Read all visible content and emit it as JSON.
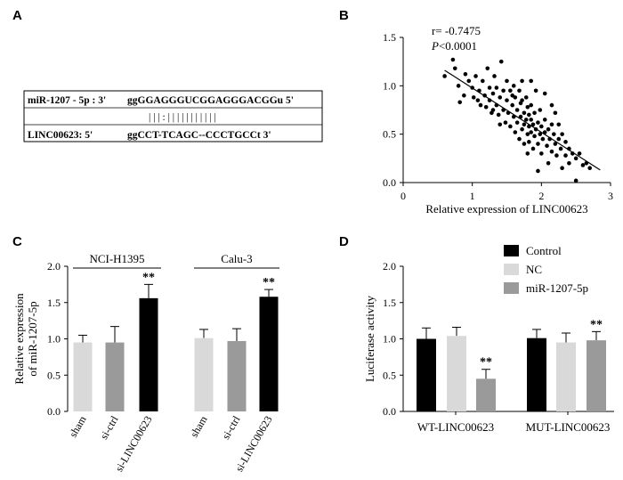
{
  "panels": {
    "A": {
      "letter": "A",
      "row1_label": "miR-1207 - 5p :  3'",
      "row1_seq": "ggGGAGGGUCGGAGGGACGGu  5'",
      "pairing": "| | |   :  | | | |     | | | | | | |",
      "row2_label": "LINC00623:  5'",
      "row2_seq": "ggCCT-TCAGC--CCCTGCCt  3'"
    },
    "B": {
      "letter": "B",
      "stat_r": "r= -0.7475",
      "stat_p_italic": "P",
      "stat_p_rest": "<0.0001"
    },
    "C": {
      "letter": "C"
    },
    "D": {
      "letter": "D"
    }
  },
  "chart_data": [
    {
      "id": "B",
      "type": "scatter",
      "xlabel": "Relative expression of LINC00623",
      "ylabel": "",
      "xlim": [
        0,
        3
      ],
      "ylim": [
        0,
        1.5
      ],
      "xticks": [
        "0",
        "1",
        "2",
        "3"
      ],
      "yticks": [
        "0.0",
        "0.5",
        "1.0",
        "1.5"
      ],
      "regression": {
        "x": [
          0.6,
          2.85
        ],
        "y": [
          1.16,
          0.13
        ]
      },
      "points": [
        [
          0.6,
          1.1
        ],
        [
          0.72,
          1.27
        ],
        [
          0.75,
          1.18
        ],
        [
          0.8,
          1.0
        ],
        [
          0.82,
          0.83
        ],
        [
          0.88,
          0.9
        ],
        [
          0.95,
          1.05
        ],
        [
          1.0,
          0.98
        ],
        [
          1.02,
          0.88
        ],
        [
          1.05,
          1.1
        ],
        [
          1.08,
          0.85
        ],
        [
          1.1,
          0.95
        ],
        [
          1.12,
          0.8
        ],
        [
          1.15,
          1.05
        ],
        [
          1.18,
          0.9
        ],
        [
          1.2,
          0.78
        ],
        [
          1.22,
          1.18
        ],
        [
          1.25,
          0.85
        ],
        [
          1.25,
          0.98
        ],
        [
          1.28,
          0.72
        ],
        [
          1.3,
          0.92
        ],
        [
          1.32,
          1.1
        ],
        [
          1.35,
          0.8
        ],
        [
          1.35,
          0.98
        ],
        [
          1.38,
          0.7
        ],
        [
          1.4,
          0.88
        ],
        [
          1.42,
          1.25
        ],
        [
          1.45,
          0.75
        ],
        [
          1.45,
          0.95
        ],
        [
          1.48,
          0.62
        ],
        [
          1.5,
          0.85
        ],
        [
          1.5,
          1.05
        ],
        [
          1.52,
          0.72
        ],
        [
          1.55,
          0.95
        ],
        [
          1.55,
          0.58
        ],
        [
          1.58,
          0.8
        ],
        [
          1.6,
          0.68
        ],
        [
          1.6,
          1.0
        ],
        [
          1.62,
          0.52
        ],
        [
          1.62,
          0.88
        ],
        [
          1.65,
          0.75
        ],
        [
          1.65,
          0.62
        ],
        [
          1.68,
          0.95
        ],
        [
          1.68,
          0.45
        ],
        [
          1.7,
          0.82
        ],
        [
          1.7,
          0.68
        ],
        [
          1.72,
          0.55
        ],
        [
          1.72,
          1.05
        ],
        [
          1.75,
          0.72
        ],
        [
          1.75,
          0.6
        ],
        [
          1.75,
          0.4
        ],
        [
          1.78,
          0.88
        ],
        [
          1.78,
          0.65
        ],
        [
          1.8,
          0.78
        ],
        [
          1.8,
          0.5
        ],
        [
          1.8,
          0.3
        ],
        [
          1.82,
          0.7
        ],
        [
          1.82,
          0.58
        ],
        [
          1.82,
          0.42
        ],
        [
          1.85,
          0.65
        ],
        [
          1.85,
          0.8
        ],
        [
          1.85,
          0.52
        ],
        [
          1.88,
          0.35
        ],
        [
          1.88,
          0.6
        ],
        [
          1.9,
          0.72
        ],
        [
          1.9,
          0.48
        ],
        [
          1.92,
          0.55
        ],
        [
          1.92,
          0.95
        ],
        [
          1.95,
          0.62
        ],
        [
          1.95,
          0.4
        ],
        [
          1.98,
          0.5
        ],
        [
          1.98,
          0.75
        ],
        [
          2.0,
          0.58
        ],
        [
          2.0,
          0.3
        ],
        [
          2.02,
          0.45
        ],
        [
          2.05,
          0.65
        ],
        [
          2.05,
          0.52
        ],
        [
          2.08,
          0.38
        ],
        [
          2.1,
          0.55
        ],
        [
          2.1,
          0.2
        ],
        [
          2.12,
          0.45
        ],
        [
          2.15,
          0.6
        ],
        [
          2.15,
          0.32
        ],
        [
          2.18,
          0.5
        ],
        [
          2.2,
          0.4
        ],
        [
          2.2,
          0.72
        ],
        [
          2.22,
          0.28
        ],
        [
          2.25,
          0.45
        ],
        [
          2.25,
          0.6
        ],
        [
          2.28,
          0.35
        ],
        [
          2.3,
          0.5
        ],
        [
          2.3,
          0.15
        ],
        [
          2.35,
          0.42
        ],
        [
          2.35,
          0.28
        ],
        [
          2.4,
          0.35
        ],
        [
          2.4,
          0.2
        ],
        [
          2.45,
          0.3
        ],
        [
          2.5,
          0.25
        ],
        [
          2.5,
          0.02
        ],
        [
          2.55,
          0.3
        ],
        [
          2.6,
          0.18
        ],
        [
          2.65,
          0.2
        ],
        [
          2.7,
          0.15
        ],
        [
          1.95,
          0.12
        ],
        [
          1.72,
          0.85
        ],
        [
          1.58,
          0.9
        ],
        [
          1.4,
          0.6
        ],
        [
          1.3,
          0.75
        ],
        [
          2.05,
          0.92
        ],
        [
          1.85,
          1.05
        ],
        [
          2.15,
          0.8
        ],
        [
          0.9,
          1.12
        ]
      ]
    },
    {
      "id": "C",
      "type": "bar",
      "ylabel": "Relative expression of miR-1207-5p",
      "ylim": [
        0,
        2.0
      ],
      "yticks": [
        "0.0",
        "0.5",
        "1.0",
        "1.5",
        "2.0"
      ],
      "categories": [
        "sham",
        "si-ctrl",
        "si-LINC00623",
        "sham",
        "si-ctrl",
        "si-LINC00623"
      ],
      "groups": [
        {
          "name": "NCI-H1395",
          "values": [
            0.95,
            0.95,
            1.56
          ],
          "errors": [
            0.1,
            0.22,
            0.19
          ],
          "sig": [
            "",
            "",
            "**"
          ]
        },
        {
          "name": "Calu-3",
          "values": [
            1.01,
            0.97,
            1.58
          ],
          "errors": [
            0.12,
            0.17,
            0.1
          ],
          "sig": [
            "",
            "",
            "**"
          ]
        }
      ],
      "colors": [
        "#d9d9d9",
        "#9a9a9a",
        "#000000"
      ]
    },
    {
      "id": "D",
      "type": "bar",
      "ylabel": "Luciferase activity",
      "ylim": [
        0,
        2.0
      ],
      "yticks": [
        "0.0",
        "0.5",
        "1.0",
        "1.5",
        "2.0"
      ],
      "categories": [
        "WT-LINC00623",
        "MUT-LINC00623"
      ],
      "series": [
        {
          "name": "Control",
          "color": "#000000",
          "values": [
            1.0,
            1.01
          ],
          "errors": [
            0.15,
            0.12
          ],
          "sig": [
            "",
            ""
          ]
        },
        {
          "name": "NC",
          "color": "#d9d9d9",
          "values": [
            1.04,
            0.95
          ],
          "errors": [
            0.12,
            0.13
          ],
          "sig": [
            "",
            ""
          ]
        },
        {
          "name": "miR-1207-5p",
          "color": "#9a9a9a",
          "values": [
            0.45,
            0.98
          ],
          "errors": [
            0.13,
            0.12
          ],
          "sig": [
            "**",
            "**"
          ]
        }
      ],
      "legend": "top-right"
    }
  ]
}
